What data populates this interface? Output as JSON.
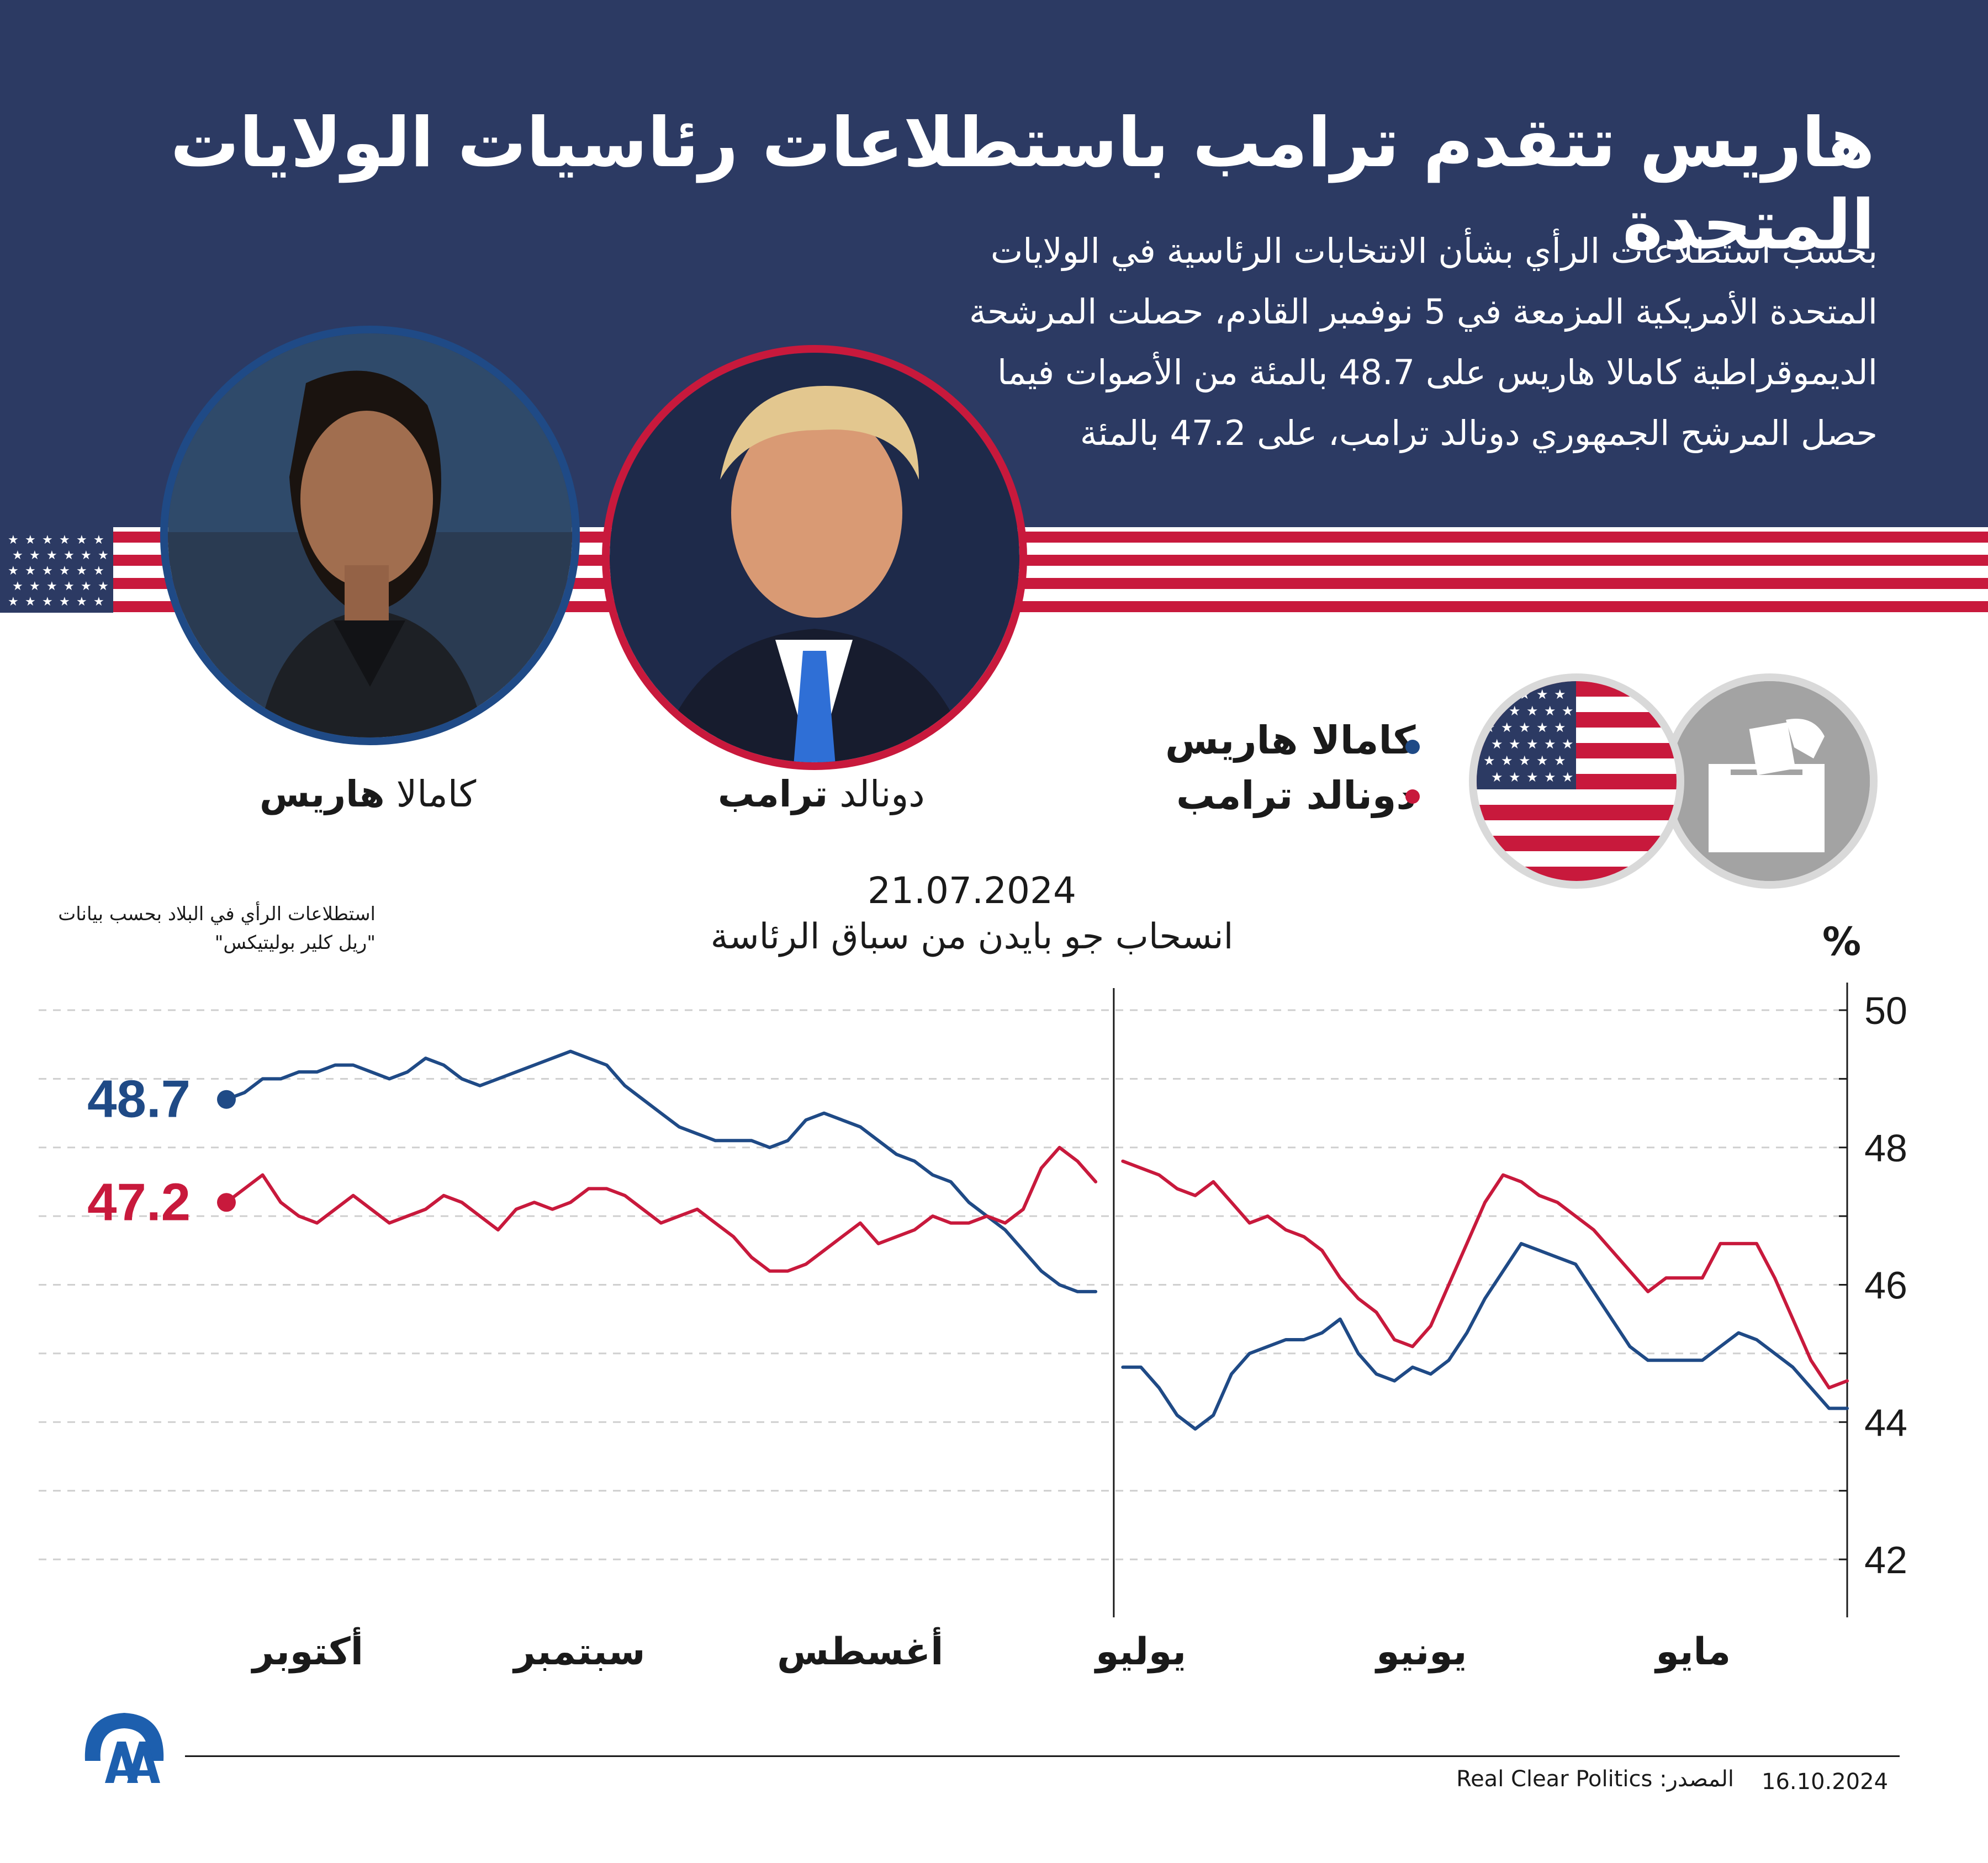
{
  "title": "هاريس تتقدم ترامب باستطلاعات رئاسيات الولايات المتحدة",
  "description": "بحسب استطلاعات الرأي بشأن الانتخابات الرئاسية في الولايات المتحدة الأمريكية المزمعة في 5 نوفمبر القادم، حصلت المرشحة الديموقراطية كامالا هاريس على 48.7 بالمئة من الأصوات فيما حصل المرشح الجمهوري دونالد ترامب، على 47.2 بالمئة",
  "candidates": {
    "harris": {
      "first": "كامالا",
      "last": "هاريس",
      "full": "كامالا هاريس"
    },
    "trump": {
      "first": "دونالد",
      "last": "ترامب",
      "full": "دونالد ترامب"
    }
  },
  "note": "استطلاعات الرأي في البلاد بحسب بيانات \"ريل كلير بوليتيكس\"",
  "event": {
    "date": "21.07.2024",
    "text": "انسحاب جو بايدن من سباق الرئاسة"
  },
  "footer": {
    "source": "المصدر: Real Clear Politics",
    "date": "16.10.2024"
  },
  "colors": {
    "harris": "#1f4a86",
    "trump": "#c8193c",
    "navy": "#2c3a63"
  },
  "icons": [
    "us-flag-icon",
    "ballot-box-icon",
    "aa-logo-icon"
  ],
  "chart_data": {
    "type": "line",
    "title": "",
    "ylabel": "%",
    "xlabel": "",
    "ylim": [
      41,
      50.5
    ],
    "yticks": [
      42,
      44,
      46,
      48,
      50
    ],
    "x_direction": "right-to-left (time flows leftward, latest on the left)",
    "months": [
      "مايو",
      "يونيو",
      "يوليو",
      "أغسطس",
      "سبتمبر",
      "أكتوبر"
    ],
    "month_positions_day": [
      17,
      47,
      78,
      109,
      140,
      170
    ],
    "event_day": 81,
    "end_labels": {
      "harris": "48.7",
      "trump": "47.2"
    },
    "series": [
      {
        "name": "كامالا هاريس",
        "key": "harris",
        "segments": [
          {
            "x": [
              0,
              2,
              4,
              6,
              8,
              10,
              12,
              14,
              16,
              18,
              20,
              22,
              24,
              26,
              28,
              30,
              32,
              34,
              36,
              38,
              40,
              42,
              44,
              46,
              48,
              50,
              52,
              54,
              56,
              58,
              60,
              62,
              64,
              66,
              68,
              70,
              72,
              74,
              76,
              78,
              80
            ],
            "y": [
              44.2,
              44.2,
              44.5,
              44.8,
              45.0,
              45.2,
              45.3,
              45.1,
              44.9,
              44.9,
              44.9,
              44.9,
              45.1,
              45.5,
              45.9,
              46.3,
              46.4,
              46.5,
              46.6,
              46.2,
              45.8,
              45.3,
              44.9,
              44.7,
              44.8,
              44.6,
              44.7,
              45.0,
              45.5,
              45.3,
              45.2,
              45.2,
              45.1,
              45.0,
              44.7,
              44.1,
              43.9,
              44.1,
              44.5,
              44.8,
              44.8
            ]
          },
          {
            "x": [
              83,
              85,
              87,
              89,
              91,
              93,
              95,
              97,
              99,
              101,
              103,
              105,
              107,
              109,
              111,
              113,
              115,
              117,
              119,
              121,
              123,
              125,
              127,
              129,
              131,
              133,
              135,
              137,
              139,
              141,
              143,
              145,
              147,
              149,
              151,
              153,
              155,
              157,
              159,
              161,
              163,
              165,
              167,
              169,
              171,
              173,
              175,
              177,
              179
            ],
            "y": [
              45.9,
              45.9,
              46.0,
              46.2,
              46.5,
              46.8,
              47.0,
              47.2,
              47.5,
              47.6,
              47.8,
              47.9,
              48.1,
              48.3,
              48.4,
              48.5,
              48.4,
              48.1,
              48.0,
              48.1,
              48.1,
              48.1,
              48.2,
              48.3,
              48.5,
              48.7,
              48.9,
              49.2,
              49.3,
              49.4,
              49.3,
              49.2,
              49.1,
              49.0,
              48.9,
              49.0,
              49.2,
              49.3,
              49.1,
              49.0,
              49.1,
              49.2,
              49.2,
              49.1,
              49.1,
              49.0,
              49.0,
              48.8,
              48.7
            ]
          }
        ]
      },
      {
        "name": "دونالد ترامب",
        "key": "trump",
        "segments": [
          {
            "x": [
              0,
              2,
              4,
              6,
              8,
              10,
              12,
              14,
              16,
              18,
              20,
              22,
              24,
              26,
              28,
              30,
              32,
              34,
              36,
              38,
              40,
              42,
              44,
              46,
              48,
              50,
              52,
              54,
              56,
              58,
              60,
              62,
              64,
              66,
              68,
              70,
              72,
              74,
              76,
              78,
              80
            ],
            "y": [
              44.6,
              44.5,
              44.9,
              45.5,
              46.1,
              46.6,
              46.6,
              46.6,
              46.1,
              46.1,
              46.1,
              45.9,
              46.2,
              46.5,
              46.8,
              47.0,
              47.2,
              47.3,
              47.5,
              47.6,
              47.2,
              46.6,
              46.0,
              45.4,
              45.1,
              45.2,
              45.6,
              45.8,
              46.1,
              46.5,
              46.7,
              46.8,
              47.0,
              46.9,
              47.2,
              47.5,
              47.3,
              47.4,
              47.6,
              47.7,
              47.8
            ]
          },
          {
            "x": [
              83,
              85,
              87,
              89,
              91,
              93,
              95,
              97,
              99,
              101,
              103,
              105,
              107,
              109,
              111,
              113,
              115,
              117,
              119,
              121,
              123,
              125,
              127,
              129,
              131,
              133,
              135,
              137,
              139,
              141,
              143,
              145,
              147,
              149,
              151,
              153,
              155,
              157,
              159,
              161,
              163,
              165,
              167,
              169,
              171,
              173,
              175,
              177,
              179
            ],
            "y": [
              47.5,
              47.8,
              48.0,
              47.7,
              47.1,
              46.9,
              47.0,
              46.9,
              46.9,
              47.0,
              46.8,
              46.7,
              46.6,
              46.9,
              46.7,
              46.5,
              46.3,
              46.2,
              46.2,
              46.4,
              46.7,
              46.9,
              47.1,
              47.0,
              46.9,
              47.1,
              47.3,
              47.4,
              47.4,
              47.2,
              47.1,
              47.2,
              47.1,
              46.8,
              47.0,
              47.2,
              47.3,
              47.1,
              47.0,
              46.9,
              47.1,
              47.3,
              47.1,
              46.9,
              47.0,
              47.2,
              47.6,
              47.4,
              47.2
            ]
          }
        ]
      }
    ]
  }
}
